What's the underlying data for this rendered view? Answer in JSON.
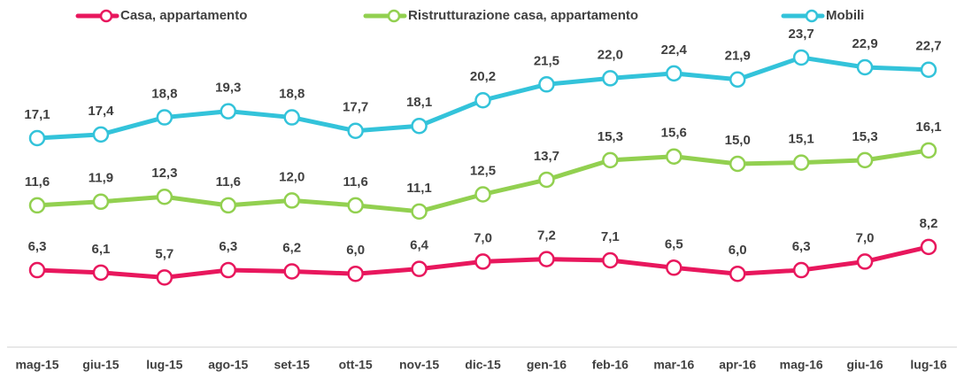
{
  "chart_data": {
    "type": "line",
    "categories": [
      "mag-15",
      "giu-15",
      "lug-15",
      "ago-15",
      "set-15",
      "ott-15",
      "nov-15",
      "dic-15",
      "gen-16",
      "feb-16",
      "mar-16",
      "apr-16",
      "mag-16",
      "giu-16",
      "lug-16"
    ],
    "ylim": [
      0,
      25
    ],
    "series": [
      {
        "name": "Casa, appartamento",
        "color": "#e8175d",
        "values": [
          6.3,
          6.1,
          5.7,
          6.3,
          6.2,
          6.0,
          6.4,
          7.0,
          7.2,
          7.1,
          6.5,
          6.0,
          6.3,
          7.0,
          8.2
        ],
        "value_labels": [
          "6,3",
          "6,1",
          "5,7",
          "6,3",
          "6,2",
          "6,0",
          "6,4",
          "7,0",
          "7,2",
          "7,1",
          "6,5",
          "6,0",
          "6,3",
          "7,0",
          "8,2"
        ]
      },
      {
        "name": "Ristrutturazione casa, appartamento",
        "color": "#92d050",
        "values": [
          11.6,
          11.9,
          12.3,
          11.6,
          12.0,
          11.6,
          11.1,
          12.5,
          13.7,
          15.3,
          15.6,
          15.0,
          15.1,
          15.3,
          16.1
        ],
        "value_labels": [
          "11,6",
          "11,9",
          "12,3",
          "11,6",
          "12,0",
          "11,6",
          "11,1",
          "12,5",
          "13,7",
          "15,3",
          "15,6",
          "15,0",
          "15,1",
          "15,3",
          "16,1"
        ]
      },
      {
        "name": "Mobili",
        "color": "#33c3da",
        "values": [
          17.1,
          17.4,
          18.8,
          19.3,
          18.8,
          17.7,
          18.1,
          20.2,
          21.5,
          22.0,
          22.4,
          21.9,
          23.7,
          22.9,
          22.7
        ],
        "value_labels": [
          "17,1",
          "17,4",
          "18,8",
          "19,3",
          "18,8",
          "17,7",
          "18,1",
          "20,2",
          "21,5",
          "22,0",
          "22,4",
          "21,9",
          "23,7",
          "22,9",
          "22,7"
        ]
      }
    ]
  }
}
